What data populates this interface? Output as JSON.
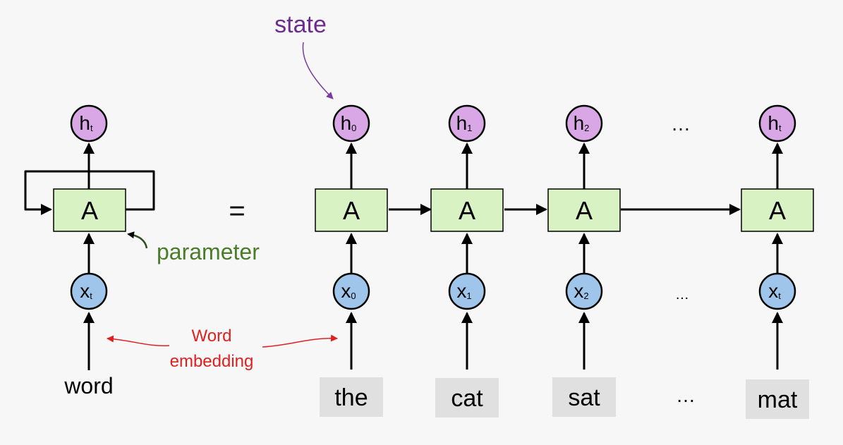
{
  "labels": {
    "state": "state",
    "parameter": "parameter",
    "word_embedding_line1": "Word",
    "word_embedding_line2": "embedding",
    "equals": "=",
    "ellipsis_top": "…",
    "ellipsis_mid": "…",
    "ellipsis_bottom": "…"
  },
  "colors": {
    "state_node": "#d9a6e6",
    "input_node": "#9fc5ea",
    "cell": "#d8f2c4",
    "word_box": "#e0e0e0",
    "state_text": "#6b2c91",
    "parameter_text": "#4a7c2a",
    "embedding_text": "#e02020"
  },
  "rolled": {
    "cell": "A",
    "state_main": "h",
    "state_sub": "t",
    "input_main": "x",
    "input_sub": "t",
    "word": "word"
  },
  "unrolled": [
    {
      "cell": "A",
      "state_main": "h",
      "state_sub": "0",
      "input_main": "x",
      "input_sub": "0",
      "word": "the"
    },
    {
      "cell": "A",
      "state_main": "h",
      "state_sub": "1",
      "input_main": "x",
      "input_sub": "1",
      "word": "cat"
    },
    {
      "cell": "A",
      "state_main": "h",
      "state_sub": "2",
      "input_main": "x",
      "input_sub": "2",
      "word": "sat"
    },
    {
      "cell": "A",
      "state_main": "h",
      "state_sub": "t",
      "input_main": "x",
      "input_sub": "t",
      "word": "mat"
    }
  ]
}
